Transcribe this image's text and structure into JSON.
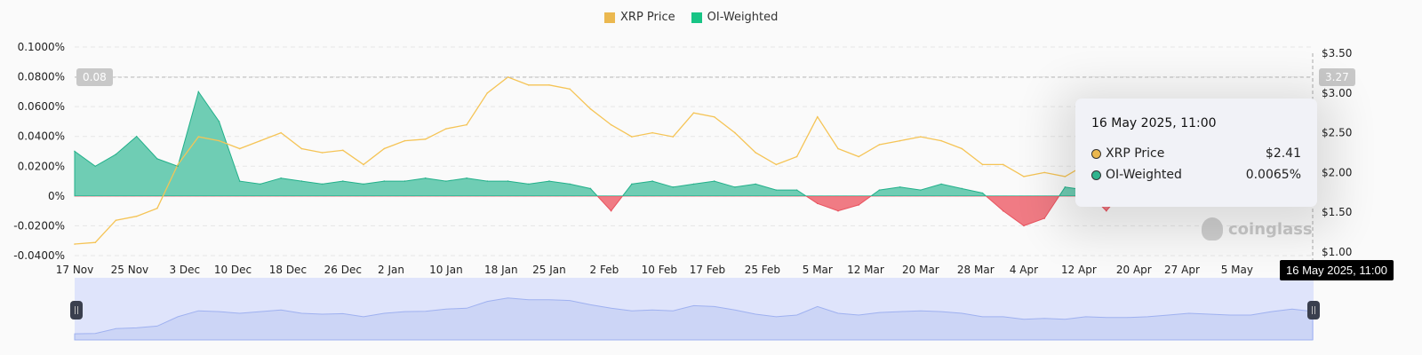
{
  "legend": [
    {
      "label": "XRP Price",
      "color": "#ebb84f"
    },
    {
      "label": "OI-Weighted",
      "color": "#17c485"
    }
  ],
  "crosshair": {
    "left_label": "0.08",
    "right_label": "3.27",
    "x_label": "16 May 2025, 11:00"
  },
  "tooltip": {
    "date": "16 May 2025, 11:00",
    "rows": [
      {
        "label": "XRP Price",
        "value": "$2.41",
        "color": "#ebb84f"
      },
      {
        "label": "OI-Weighted",
        "value": "0.0065%",
        "color": "#2fb48e"
      }
    ]
  },
  "watermark": "coinglass",
  "chart_data": {
    "type": "area",
    "x_ticks": [
      "17 Nov",
      "25 Nov",
      "3 Dec",
      "10 Dec",
      "18 Dec",
      "26 Dec",
      "2 Jan",
      "10 Jan",
      "18 Jan",
      "25 Jan",
      "2 Feb",
      "10 Feb",
      "17 Feb",
      "25 Feb",
      "5 Mar",
      "12 Mar",
      "20 Mar",
      "28 Mar",
      "4 Apr",
      "12 Apr",
      "20 Apr",
      "27 Apr",
      "5 May"
    ],
    "y_left_ticks": [
      "0.1000%",
      "0.0800%",
      "0.0600%",
      "0.0400%",
      "0.0200%",
      "0%",
      "-0.0200%",
      "-0.0400%"
    ],
    "y_right_ticks": [
      "$3.50",
      "$3.00",
      "$2.50",
      "$2.00",
      "$1.50",
      "$1.00"
    ],
    "ylim_left": [
      -0.04,
      0.1
    ],
    "ylim_right": [
      1.0,
      3.5
    ],
    "grid": true,
    "legend_position": "top",
    "x": [
      "2024-11-17",
      "2024-11-20",
      "2024-11-23",
      "2024-11-26",
      "2024-11-29",
      "2024-12-02",
      "2024-12-05",
      "2024-12-08",
      "2024-12-11",
      "2024-12-14",
      "2024-12-17",
      "2024-12-20",
      "2024-12-23",
      "2024-12-26",
      "2024-12-29",
      "2025-01-01",
      "2025-01-04",
      "2025-01-07",
      "2025-01-10",
      "2025-01-13",
      "2025-01-16",
      "2025-01-19",
      "2025-01-22",
      "2025-01-25",
      "2025-01-28",
      "2025-01-31",
      "2025-02-03",
      "2025-02-06",
      "2025-02-09",
      "2025-02-12",
      "2025-02-15",
      "2025-02-18",
      "2025-02-21",
      "2025-02-24",
      "2025-02-27",
      "2025-03-02",
      "2025-03-05",
      "2025-03-08",
      "2025-03-11",
      "2025-03-14",
      "2025-03-17",
      "2025-03-20",
      "2025-03-23",
      "2025-03-26",
      "2025-03-29",
      "2025-04-01",
      "2025-04-04",
      "2025-04-07",
      "2025-04-10",
      "2025-04-13",
      "2025-04-16",
      "2025-04-19",
      "2025-04-22",
      "2025-04-25",
      "2025-04-28",
      "2025-05-01",
      "2025-05-04",
      "2025-05-07",
      "2025-05-10",
      "2025-05-13",
      "2025-05-16"
    ],
    "series": [
      {
        "name": "XRP Price",
        "axis": "right",
        "color": "#f5c456",
        "values": [
          1.1,
          1.12,
          1.4,
          1.45,
          1.55,
          2.1,
          2.45,
          2.4,
          2.3,
          2.4,
          2.5,
          2.3,
          2.25,
          2.28,
          2.1,
          2.3,
          2.4,
          2.42,
          2.55,
          2.6,
          3.0,
          3.2,
          3.1,
          3.1,
          3.05,
          2.8,
          2.6,
          2.45,
          2.5,
          2.45,
          2.75,
          2.7,
          2.5,
          2.25,
          2.1,
          2.2,
          2.7,
          2.3,
          2.2,
          2.35,
          2.4,
          2.45,
          2.4,
          2.3,
          2.1,
          2.1,
          1.95,
          2.0,
          1.95,
          2.1,
          2.05,
          2.05,
          2.1,
          2.2,
          2.3,
          2.25,
          2.2,
          2.2,
          2.4,
          2.55,
          2.41
        ]
      },
      {
        "name": "OI-Weighted",
        "axis": "left",
        "color": "#2fb48e",
        "negative_color": "#e8525e",
        "values": [
          0.03,
          0.02,
          0.028,
          0.04,
          0.025,
          0.02,
          0.07,
          0.05,
          0.01,
          0.008,
          0.012,
          0.01,
          0.008,
          0.01,
          0.008,
          0.01,
          0.01,
          0.012,
          0.01,
          0.012,
          0.01,
          0.01,
          0.008,
          0.01,
          0.008,
          0.005,
          -0.01,
          0.008,
          0.01,
          0.006,
          0.008,
          0.01,
          0.006,
          0.008,
          0.004,
          0.004,
          -0.005,
          -0.01,
          -0.006,
          0.004,
          0.006,
          0.004,
          0.008,
          0.005,
          0.002,
          -0.01,
          -0.02,
          -0.015,
          0.006,
          0.004,
          -0.01,
          0.006,
          0.004,
          0.008,
          0.006,
          0.006,
          0.008,
          0.01,
          0.006,
          0.006,
          0.0065
        ]
      }
    ]
  }
}
